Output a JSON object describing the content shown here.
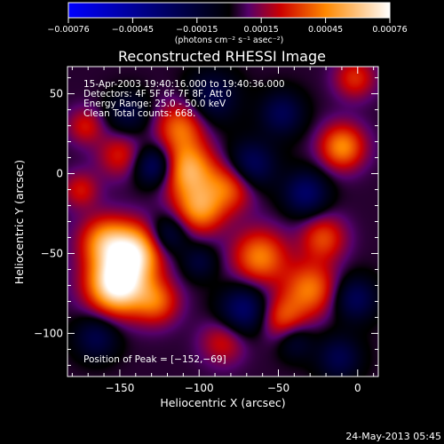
{
  "chart_data": {
    "type": "heatmap",
    "title": "Reconstructed RHESSI Image",
    "xlabel": "Heliocentric X (arcsec)",
    "ylabel": "Heliocentric Y (arcsec)",
    "xlim": [
      -183,
      13
    ],
    "ylim": [
      -127,
      67
    ],
    "xticks": [
      -150,
      -100,
      -50,
      0
    ],
    "yticks": [
      50,
      0,
      -50,
      -100
    ],
    "xtick_labels": [
      "−150",
      "−100",
      "−50",
      "0"
    ],
    "ytick_labels": [
      "50",
      "0",
      "−50",
      "−100"
    ],
    "colorbar": {
      "range": [
        -0.00076,
        0.00076
      ],
      "tick_labels": [
        "−0.00076",
        "−0.00045",
        "−0.00015",
        "0.00015",
        "0.00045",
        "0.00076"
      ],
      "unit_label": "(photons cm⁻² s⁻¹ asec⁻²)"
    },
    "annotations": {
      "time_line": "15-Apr-2003 19:40:16.000 to 19:40:36.000",
      "detectors_line": "Detectors: 4F 5F 6F 7F 8F, Att 0",
      "energy_line": "Energy Range: 25.0 - 50.0 keV",
      "clean_line": "Clean    Total counts: 668.",
      "peak_line": "Position of Peak = [−152,−69]"
    },
    "peak": {
      "x": -152,
      "y": -69
    },
    "blobs": [
      {
        "x": -152,
        "y": -69,
        "s": 13,
        "a": 0.00076
      },
      {
        "x": -140,
        "y": -48,
        "s": 12,
        "a": 0.00055
      },
      {
        "x": -160,
        "y": -42,
        "s": 11,
        "a": 0.0004
      },
      {
        "x": -127,
        "y": -80,
        "s": 10,
        "a": 0.00032
      },
      {
        "x": -108,
        "y": 3,
        "s": 12,
        "a": 0.0005
      },
      {
        "x": -100,
        "y": -22,
        "s": 11,
        "a": 0.00042
      },
      {
        "x": -112,
        "y": 30,
        "s": 11,
        "a": 0.00035
      },
      {
        "x": -80,
        "y": -7,
        "s": 11,
        "a": 0.00036
      },
      {
        "x": -62,
        "y": -52,
        "s": 12,
        "a": 0.0004
      },
      {
        "x": -30,
        "y": -72,
        "s": 12,
        "a": 0.00038
      },
      {
        "x": -48,
        "y": -90,
        "s": 10,
        "a": 0.0003
      },
      {
        "x": -10,
        "y": 17,
        "s": 10,
        "a": 0.00042
      },
      {
        "x": -22,
        "y": -40,
        "s": 10,
        "a": 0.0003
      },
      {
        "x": -150,
        "y": 12,
        "s": 10,
        "a": 0.00024
      },
      {
        "x": -172,
        "y": 30,
        "s": 8,
        "a": 0.00022
      },
      {
        "x": -2,
        "y": 60,
        "s": 9,
        "a": 0.00026
      },
      {
        "x": -175,
        "y": -10,
        "s": 8,
        "a": 0.00022
      },
      {
        "x": -85,
        "y": -105,
        "s": 10,
        "a": 0.00022
      },
      {
        "x": -128,
        "y": 5,
        "s": 9,
        "a": -0.0004
      },
      {
        "x": -68,
        "y": 5,
        "s": 11,
        "a": -0.00036
      },
      {
        "x": -72,
        "y": -85,
        "s": 11,
        "a": -0.00036
      },
      {
        "x": -33,
        "y": -12,
        "s": 10,
        "a": -0.00034
      },
      {
        "x": -2,
        "y": -78,
        "s": 10,
        "a": -0.0003
      },
      {
        "x": -120,
        "y": -38,
        "s": 9,
        "a": -0.00028
      },
      {
        "x": -92,
        "y": 48,
        "s": 12,
        "a": -0.00026
      },
      {
        "x": -165,
        "y": -102,
        "s": 10,
        "a": -0.00026
      },
      {
        "x": -145,
        "y": 38,
        "s": 10,
        "a": -0.00022
      },
      {
        "x": -48,
        "y": 38,
        "s": 10,
        "a": -0.00028
      },
      {
        "x": -12,
        "y": -115,
        "s": 10,
        "a": -0.00026
      },
      {
        "x": -100,
        "y": -55,
        "s": 8,
        "a": -0.0002
      },
      {
        "x": -40,
        "y": -105,
        "s": 8,
        "a": -0.0002
      }
    ]
  },
  "footer": {
    "timestamp": "24-May-2013 05:45"
  }
}
